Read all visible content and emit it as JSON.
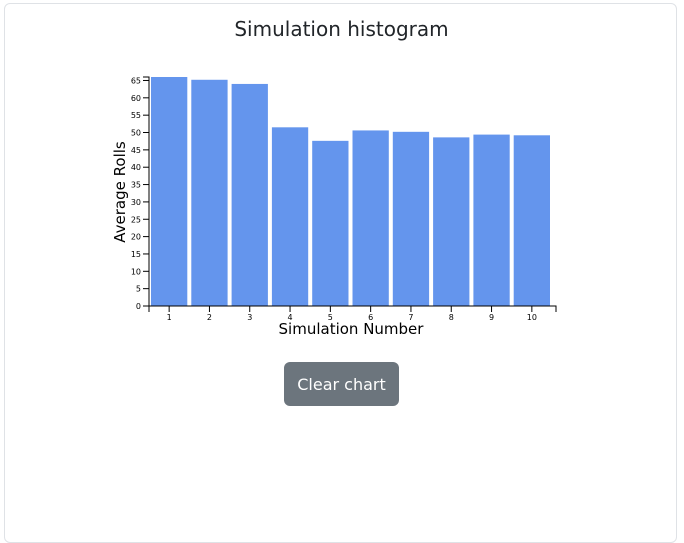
{
  "card": {
    "title": "Simulation histogram"
  },
  "actions": {
    "clear_label": "Clear chart"
  },
  "colors": {
    "bar": "#6495ed",
    "axis": "#000000",
    "button_bg": "#6c757d",
    "button_text": "#ffffff"
  },
  "chart_data": {
    "type": "bar",
    "title": "Simulation histogram",
    "xlabel": "Simulation Number",
    "ylabel": "Average Rolls",
    "categories": [
      "1",
      "2",
      "3",
      "4",
      "5",
      "6",
      "7",
      "8",
      "9",
      "10"
    ],
    "values": [
      66,
      65.2,
      64,
      51.5,
      47.6,
      50.6,
      50.2,
      48.6,
      49.4,
      49.2
    ],
    "ylim": [
      0,
      66
    ],
    "yticks": [
      0,
      5,
      10,
      15,
      20,
      25,
      30,
      35,
      40,
      45,
      50,
      55,
      60,
      65
    ],
    "grid": false,
    "legend": "none"
  }
}
